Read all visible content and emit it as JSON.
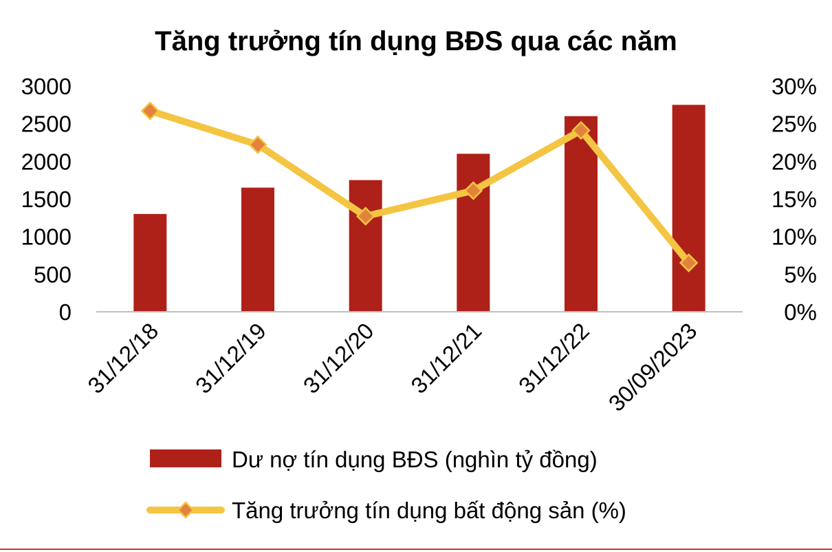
{
  "chart_data": {
    "type": "bar",
    "title": "Tăng trưởng tín dụng BĐS qua các năm",
    "categories": [
      "31/12/18",
      "31/12/19",
      "31/12/20",
      "31/12/21",
      "31/12/22",
      "30/09/2023"
    ],
    "series": [
      {
        "name": "Dư nợ tín dụng BĐS (nghìn tỷ đồng)",
        "type": "bar",
        "axis": "left",
        "color": "#ae2119",
        "values": [
          1300,
          1650,
          1750,
          2100,
          2600,
          2750
        ]
      },
      {
        "name": "Tăng trưởng tín dụng bất động sản (%)",
        "type": "line",
        "axis": "right",
        "color": "#f4c542",
        "marker_color": "#e3823a",
        "values": [
          26.7,
          22.2,
          12.7,
          16.1,
          24.1,
          6.5
        ]
      }
    ],
    "y_left": {
      "ylim": [
        0,
        3000
      ],
      "ticks": [
        "0",
        "500",
        "1000",
        "1500",
        "2000",
        "2500",
        "3000"
      ]
    },
    "y_right": {
      "ylim": [
        0,
        30
      ],
      "ticks": [
        "0%",
        "5%",
        "10%",
        "15%",
        "20%",
        "25%",
        "30%"
      ]
    },
    "grid": false,
    "legend_position": "bottom",
    "accent_color": "#c0392b"
  }
}
